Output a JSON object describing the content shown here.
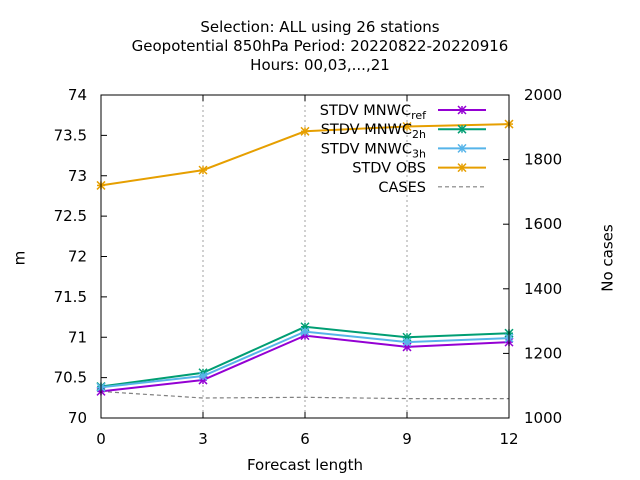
{
  "chart_data": {
    "type": "line",
    "title_lines": [
      "Selection: ALL using    26 stations",
      "Geopotential 850hPa   Period: 20220822-20220916",
      "Hours:  00,03,...,21"
    ],
    "xlabel": "Forecast length",
    "ylabel": "m",
    "y2label": "No cases",
    "x": [
      0,
      3,
      6,
      9,
      12
    ],
    "xlim": [
      0,
      12
    ],
    "ylim": [
      70,
      74
    ],
    "y2lim": [
      1000,
      2000
    ],
    "xticks": [
      "0",
      "3",
      "6",
      "9",
      "12"
    ],
    "yticks": [
      "70",
      "70.5",
      "71",
      "71.5",
      "72",
      "72.5",
      "73",
      "73.5",
      "74"
    ],
    "y2ticks": [
      "1000",
      "1200",
      "1400",
      "1600",
      "1800",
      "2000"
    ],
    "grid": true,
    "legend_position": "top-right",
    "series": [
      {
        "name": "STDV MNWC_ref",
        "label_main": "STDV MNWC",
        "label_sub": "ref",
        "axis": "y",
        "color": "#9400d3",
        "marker": "x",
        "values": [
          70.33,
          70.47,
          71.02,
          70.88,
          70.94
        ]
      },
      {
        "name": "STDV MNWC_2h",
        "label_main": "STDV MNWC",
        "label_sub": "2h",
        "axis": "y",
        "color": "#009e73",
        "marker": "x",
        "values": [
          70.39,
          70.56,
          71.13,
          71.0,
          71.05
        ]
      },
      {
        "name": "STDV MNWC_3h",
        "label_main": "STDV MNWC",
        "label_sub": "3h",
        "axis": "y",
        "color": "#56b4e9",
        "marker": "x",
        "values": [
          70.38,
          70.52,
          71.07,
          70.94,
          70.99
        ]
      },
      {
        "name": "STDV OBS",
        "label_main": "STDV OBS",
        "label_sub": "",
        "axis": "y",
        "color": "#e69f00",
        "marker": "x",
        "values": [
          72.88,
          73.07,
          73.55,
          73.61,
          73.64
        ]
      },
      {
        "name": "CASES",
        "label_main": "CASES",
        "label_sub": "",
        "axis": "y2",
        "color": "#808080",
        "marker": "none",
        "dashed": true,
        "values": [
          1082,
          1062,
          1064,
          1060,
          1060
        ]
      }
    ]
  }
}
